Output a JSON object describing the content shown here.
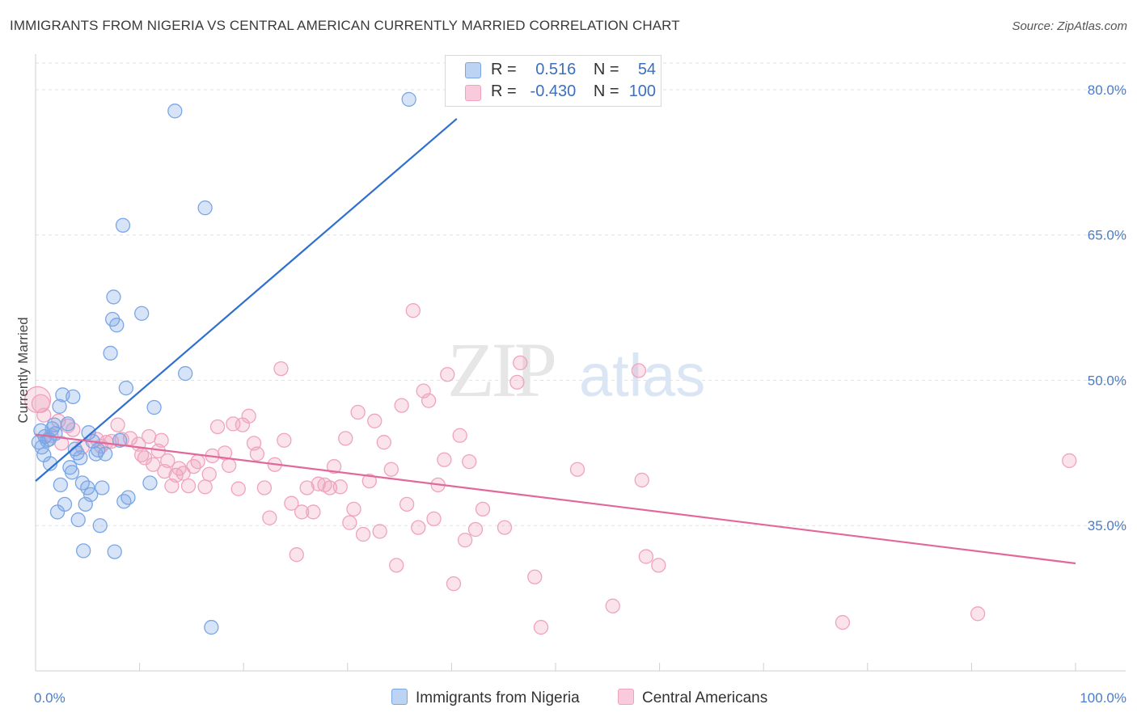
{
  "title": "IMMIGRANTS FROM NIGERIA VS CENTRAL AMERICAN CURRENTLY MARRIED CORRELATION CHART",
  "source": "Source: ZipAtlas.com",
  "watermark": {
    "zip": "ZIP",
    "atlas": "atlas"
  },
  "legend": {
    "rows": [
      {
        "r_label": "R =",
        "r_value": "0.516",
        "n_label": "N =",
        "n_value": "54"
      },
      {
        "r_label": "R =",
        "r_value": "-0.430",
        "n_label": "N =",
        "n_value": "100"
      }
    ]
  },
  "chart_data": {
    "type": "scatter",
    "title": "IMMIGRANTS FROM NIGERIA VS CENTRAL AMERICAN CURRENTLY MARRIED CORRELATION CHART",
    "xlabel": "",
    "ylabel": "Currently Married",
    "xlim": [
      0,
      100
    ],
    "ylim": [
      20,
      83
    ],
    "x_tick_labels": [
      "0.0%",
      "100.0%"
    ],
    "y_ticks": [
      35,
      50,
      65,
      80
    ],
    "y_tick_labels": [
      "35.0%",
      "50.0%",
      "65.0%",
      "80.0%"
    ],
    "grid": true,
    "legend_position": "bottom",
    "series": [
      {
        "name": "Immigrants from Nigeria",
        "color": "#7aa6e6",
        "line_color": "#2f6fd0",
        "r": 0.516,
        "n": 54,
        "trend": {
          "x": [
            0,
            40.5
          ],
          "y": [
            39.6,
            77.0
          ]
        },
        "points": [
          [
            0.3,
            43.6
          ],
          [
            0.5,
            44.8
          ],
          [
            0.6,
            43.1
          ],
          [
            0.8,
            42.3
          ],
          [
            0.9,
            44.2
          ],
          [
            1.1,
            43.8
          ],
          [
            1.3,
            43.9
          ],
          [
            1.4,
            41.4
          ],
          [
            1.6,
            45.0
          ],
          [
            1.8,
            45.4
          ],
          [
            1.9,
            44.5
          ],
          [
            2.1,
            36.4
          ],
          [
            2.3,
            47.3
          ],
          [
            2.4,
            39.2
          ],
          [
            2.6,
            48.5
          ],
          [
            2.8,
            37.2
          ],
          [
            3.1,
            45.5
          ],
          [
            3.3,
            41.0
          ],
          [
            3.5,
            40.5
          ],
          [
            3.6,
            48.3
          ],
          [
            3.8,
            42.9
          ],
          [
            4.0,
            42.5
          ],
          [
            4.1,
            35.6
          ],
          [
            4.3,
            42.0
          ],
          [
            4.5,
            39.4
          ],
          [
            4.6,
            32.4
          ],
          [
            4.8,
            37.2
          ],
          [
            5.0,
            38.9
          ],
          [
            5.1,
            44.6
          ],
          [
            5.3,
            38.2
          ],
          [
            5.5,
            43.7
          ],
          [
            5.8,
            42.4
          ],
          [
            6.0,
            42.8
          ],
          [
            6.2,
            35.0
          ],
          [
            6.4,
            38.9
          ],
          [
            6.7,
            42.4
          ],
          [
            7.2,
            52.8
          ],
          [
            7.4,
            56.3
          ],
          [
            7.5,
            58.6
          ],
          [
            7.6,
            32.3
          ],
          [
            7.8,
            55.7
          ],
          [
            8.1,
            43.8
          ],
          [
            8.4,
            66.0
          ],
          [
            8.5,
            37.5
          ],
          [
            8.7,
            49.2
          ],
          [
            8.9,
            37.9
          ],
          [
            10.2,
            56.9
          ],
          [
            11.0,
            39.4
          ],
          [
            11.4,
            47.2
          ],
          [
            13.4,
            77.8
          ],
          [
            14.4,
            50.7
          ],
          [
            16.3,
            67.8
          ],
          [
            16.9,
            24.5
          ],
          [
            35.9,
            79.0
          ]
        ]
      },
      {
        "name": "Central Americans",
        "color": "#f0a3be",
        "line_color": "#e2689a",
        "r": -0.43,
        "n": 100,
        "trend": {
          "x": [
            0,
            100
          ],
          "y": [
            44.4,
            31.1
          ]
        },
        "points": [
          [
            0.2,
            48.0
          ],
          [
            0.5,
            47.6
          ],
          [
            0.8,
            46.4
          ],
          [
            1.5,
            44.3
          ],
          [
            2.2,
            45.8
          ],
          [
            2.5,
            43.5
          ],
          [
            3.1,
            45.3
          ],
          [
            3.6,
            44.9
          ],
          [
            4.5,
            43.1
          ],
          [
            5.9,
            43.9
          ],
          [
            6.3,
            43.2
          ],
          [
            6.8,
            43.6
          ],
          [
            7.3,
            43.7
          ],
          [
            7.9,
            45.4
          ],
          [
            8.3,
            43.9
          ],
          [
            9.1,
            44.0
          ],
          [
            9.9,
            43.4
          ],
          [
            10.2,
            42.3
          ],
          [
            10.5,
            42.0
          ],
          [
            10.9,
            44.2
          ],
          [
            11.3,
            41.3
          ],
          [
            11.8,
            42.7
          ],
          [
            12.1,
            43.8
          ],
          [
            12.4,
            40.6
          ],
          [
            12.7,
            41.7
          ],
          [
            13.1,
            39.1
          ],
          [
            13.5,
            40.2
          ],
          [
            13.8,
            40.9
          ],
          [
            14.2,
            40.4
          ],
          [
            14.7,
            39.1
          ],
          [
            15.2,
            41.1
          ],
          [
            15.6,
            41.6
          ],
          [
            16.3,
            39.0
          ],
          [
            16.7,
            40.3
          ],
          [
            17.0,
            42.2
          ],
          [
            17.5,
            45.2
          ],
          [
            18.2,
            42.5
          ],
          [
            18.6,
            41.2
          ],
          [
            19.0,
            45.5
          ],
          [
            19.5,
            38.8
          ],
          [
            19.9,
            45.4
          ],
          [
            20.5,
            46.3
          ],
          [
            21.0,
            43.5
          ],
          [
            21.3,
            42.4
          ],
          [
            22.0,
            38.9
          ],
          [
            22.5,
            35.8
          ],
          [
            23.0,
            41.3
          ],
          [
            23.6,
            51.2
          ],
          [
            23.9,
            43.8
          ],
          [
            24.6,
            37.3
          ],
          [
            25.1,
            32.0
          ],
          [
            25.6,
            36.4
          ],
          [
            26.1,
            38.9
          ],
          [
            26.7,
            36.4
          ],
          [
            27.2,
            39.3
          ],
          [
            27.8,
            39.2
          ],
          [
            28.3,
            38.9
          ],
          [
            28.7,
            41.1
          ],
          [
            29.3,
            39.0
          ],
          [
            29.8,
            44.0
          ],
          [
            30.2,
            35.3
          ],
          [
            30.6,
            36.7
          ],
          [
            31.0,
            46.7
          ],
          [
            31.5,
            34.1
          ],
          [
            32.1,
            39.6
          ],
          [
            32.6,
            45.8
          ],
          [
            33.1,
            34.4
          ],
          [
            33.5,
            43.6
          ],
          [
            34.2,
            40.8
          ],
          [
            34.7,
            30.9
          ],
          [
            35.2,
            47.4
          ],
          [
            35.7,
            37.2
          ],
          [
            36.3,
            57.2
          ],
          [
            36.8,
            34.8
          ],
          [
            37.3,
            48.9
          ],
          [
            37.8,
            47.9
          ],
          [
            38.3,
            35.7
          ],
          [
            38.7,
            39.2
          ],
          [
            39.3,
            41.8
          ],
          [
            39.6,
            50.6
          ],
          [
            40.2,
            29.0
          ],
          [
            40.8,
            44.3
          ],
          [
            41.3,
            33.5
          ],
          [
            41.7,
            41.6
          ],
          [
            42.3,
            34.6
          ],
          [
            43.0,
            36.7
          ],
          [
            45.1,
            34.8
          ],
          [
            46.3,
            49.8
          ],
          [
            46.6,
            51.8
          ],
          [
            48.0,
            29.7
          ],
          [
            48.6,
            24.5
          ],
          [
            52.1,
            40.8
          ],
          [
            55.5,
            26.7
          ],
          [
            58.0,
            51.0
          ],
          [
            58.3,
            39.7
          ],
          [
            58.7,
            31.8
          ],
          [
            59.9,
            30.9
          ],
          [
            77.6,
            25.0
          ],
          [
            90.6,
            25.9
          ],
          [
            99.4,
            41.7
          ]
        ]
      }
    ]
  }
}
